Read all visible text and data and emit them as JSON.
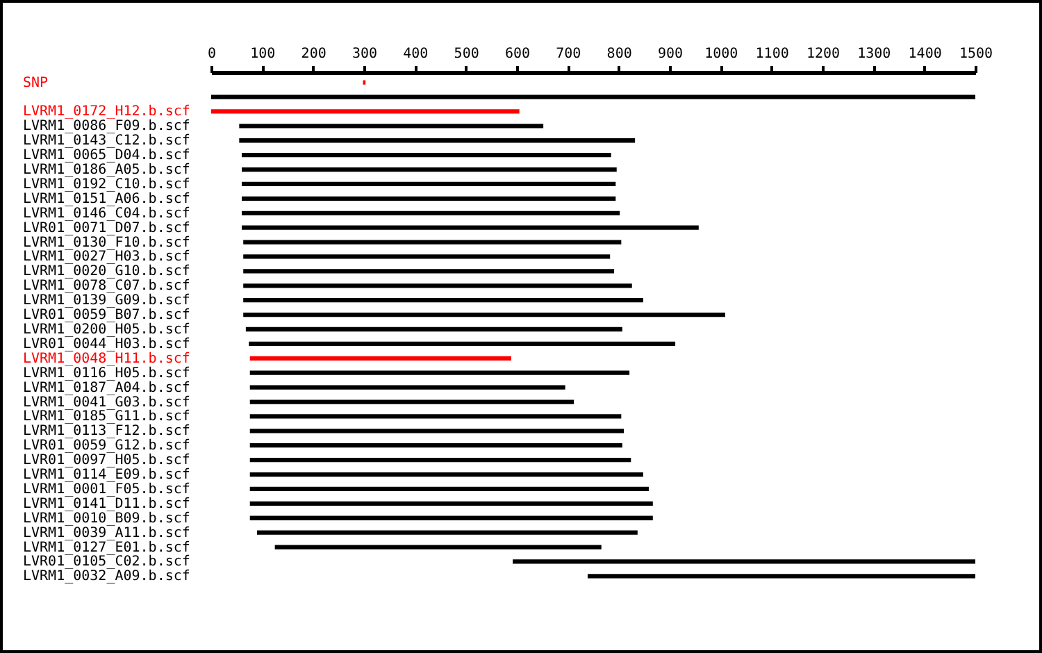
{
  "chart_data": {
    "type": "bar",
    "orientation": "horizontal",
    "categories": [
      "SNP",
      null,
      "LVRM1_0172_H12.b.scf",
      "LVRM1_0086_F09.b.scf",
      "LVRM1_0143_C12.b.scf",
      "LVRM1_0065_D04.b.scf",
      "LVRM1_0186_A05.b.scf",
      "LVRM1_0192_C10.b.scf",
      "LVRM1_0151_A06.b.scf",
      "LVRM1_0146_C04.b.scf",
      "LVR01_0071_D07.b.scf",
      "LVRM1_0130_F10.b.scf",
      "LVRM1_0027_H03.b.scf",
      "LVRM1_0020_G10.b.scf",
      "LVRM1_0078_C07.b.scf",
      "LVRM1_0139_G09.b.scf",
      "LVR01_0059_B07.b.scf",
      "LVRM1_0200_H05.b.scf",
      "LVR01_0044_H03.b.scf",
      "LVRM1_0048_H11.b.scf",
      "LVRM1_0116_H05.b.scf",
      "LVRM1_0187_A04.b.scf",
      "LVRM1_0041_G03.b.scf",
      "LVRM1_0185_G11.b.scf",
      "LVRM1_0113_F12.b.scf",
      "LVR01_0059_G12.b.scf",
      "LVR01_0097_H05.b.scf",
      "LVRM1_0114_E09.b.scf",
      "LVRM1_0001_F05.b.scf",
      "LVRM1_0141_D11.b.scf",
      "LVRM1_0010_B09.b.scf",
      "LVRM1_0039_A11.b.scf",
      "LVRM1_0127_E01.b.scf",
      "LVR01_0105_C02.b.scf",
      "LVRM1_0032_A09.b.scf"
    ],
    "base": [
      298,
      0,
      0,
      55,
      55,
      60,
      60,
      60,
      60,
      60,
      60,
      63,
      63,
      63,
      63,
      63,
      63,
      68,
      74,
      76,
      76,
      76,
      76,
      76,
      76,
      76,
      76,
      76,
      76,
      76,
      76,
      90,
      125,
      592,
      739
    ],
    "values": [
      5,
      1500,
      605,
      597,
      777,
      725,
      736,
      734,
      734,
      742,
      897,
      742,
      720,
      728,
      763,
      785,
      946,
      739,
      837,
      513,
      745,
      619,
      636,
      729,
      734,
      731,
      748,
      772,
      783,
      791,
      791,
      747,
      641,
      908,
      761
    ],
    "colors": [
      "#ff0000",
      "#000000",
      "#ff0000",
      "#000000",
      "#000000",
      "#000000",
      "#000000",
      "#000000",
      "#000000",
      "#000000",
      "#000000",
      "#000000",
      "#000000",
      "#000000",
      "#000000",
      "#000000",
      "#000000",
      "#000000",
      "#000000",
      "#ff0000",
      "#000000",
      "#000000",
      "#000000",
      "#000000",
      "#000000",
      "#000000",
      "#000000",
      "#000000",
      "#000000",
      "#000000",
      "#000000",
      "#000000",
      "#000000",
      "#000000",
      "#000000"
    ],
    "xlim": [
      0,
      1500
    ],
    "xticks": [
      0,
      100,
      200,
      300,
      400,
      500,
      600,
      700,
      800,
      900,
      1000,
      1100,
      1200,
      1300,
      1400,
      1500
    ]
  }
}
